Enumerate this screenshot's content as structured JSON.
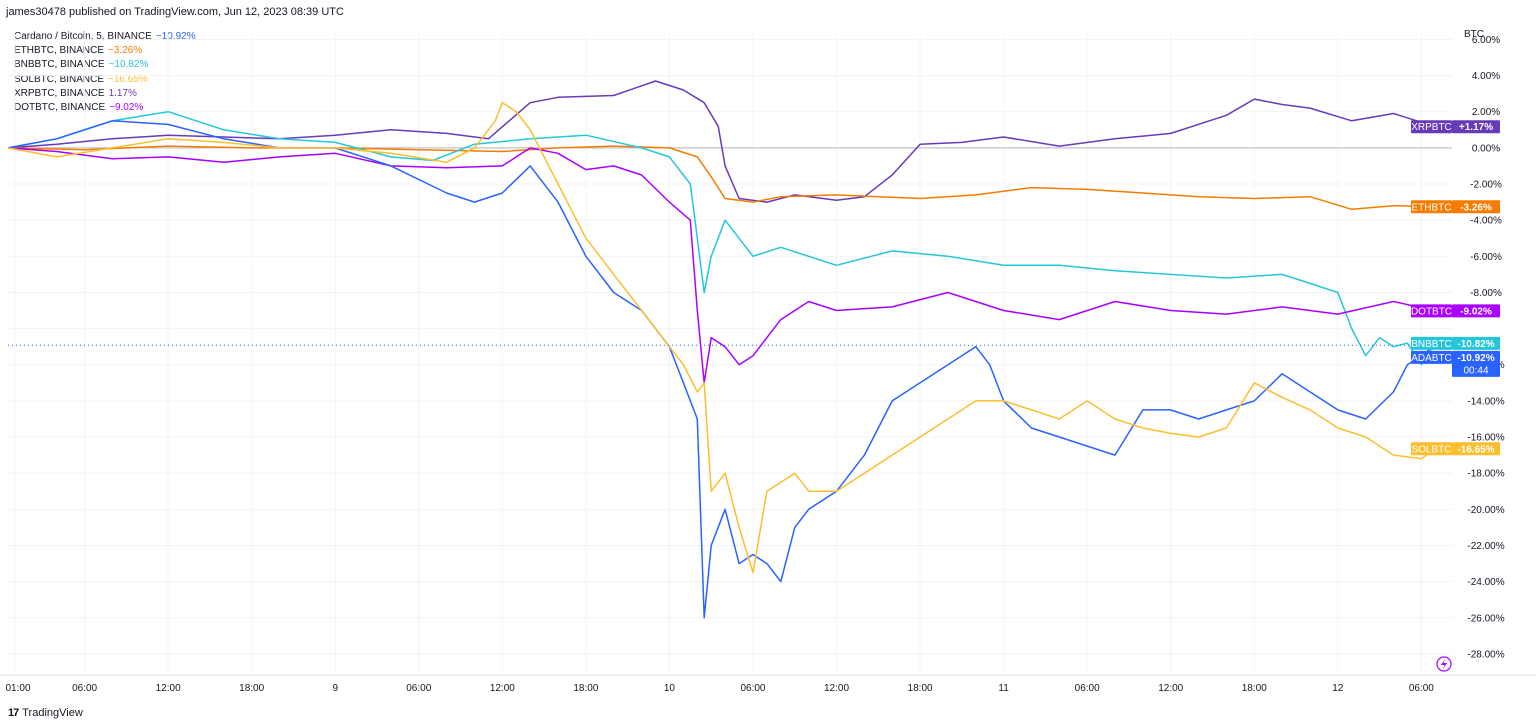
{
  "header": {
    "publish_text": "james30478 published on TradingView.com, Jun 12, 2023 08:39 UTC"
  },
  "footer": {
    "brand": "TradingView"
  },
  "colors": {
    "ADABTC": "#2962ff",
    "ETHBTC": "#f57c00",
    "BNBBTC": "#26c6da",
    "SOLBTC": "#fbbf2d",
    "XRPBTC": "#673ab7",
    "DOTBTC": "#aa00ff"
  },
  "chart_data": {
    "type": "line",
    "y_unit_label": "BTC",
    "y_tick_labels": [
      "6.00%",
      "4.00%",
      "2.00%",
      "0.00%",
      "-2.00%",
      "-4.00%",
      "-6.00%",
      "-8.00%",
      "-12.00%",
      "-14.00%",
      "-16.00%",
      "-18.00%",
      "-20.00%",
      "-22.00%",
      "-24.00%",
      "-26.00%",
      "-28.00%"
    ],
    "y_tick_values": [
      6,
      4,
      2,
      0,
      -2,
      -4,
      -6,
      -8,
      -12,
      -14,
      -16,
      -18,
      -20,
      -22,
      -24,
      -26,
      -28
    ],
    "ylim": [
      -29,
      6.3
    ],
    "x_tick_labels": [
      "01:00",
      "06:00",
      "12:00",
      "18:00",
      "9",
      "06:00",
      "12:00",
      "18:00",
      "10",
      "06:00",
      "12:00",
      "18:00",
      "11",
      "06:00",
      "12:00",
      "18:00",
      "12",
      "06:00"
    ],
    "x_tick_hours": [
      1,
      6,
      12,
      18,
      24,
      30,
      36,
      42,
      48,
      54,
      60,
      66,
      72,
      78,
      84,
      90,
      96,
      102
    ],
    "x_range_hours": [
      0.5,
      104.2
    ],
    "legend": [
      {
        "symbol": "ADABTC",
        "text": "Cardano / Bitcoin, 5, BINANCE",
        "value": "−10.92%"
      },
      {
        "symbol": "ETHBTC",
        "text": "ETHBTC, BINANCE",
        "value": "−3.26%"
      },
      {
        "symbol": "BNBBTC",
        "text": "BNBBTC, BINANCE",
        "value": "−10.82%"
      },
      {
        "symbol": "SOLBTC",
        "text": "SOLBTC, BINANCE",
        "value": "−16.65%"
      },
      {
        "symbol": "XRPBTC",
        "text": "XRPBTC, BINANCE",
        "value": "1.17%"
      },
      {
        "symbol": "DOTBTC",
        "text": "DOTBTC, BINANCE",
        "value": "−9.02%"
      }
    ],
    "price_tags": [
      {
        "symbol": "XRPBTC",
        "label": "XRPBTC",
        "value": "+1.17%",
        "y": 1.17
      },
      {
        "symbol": "ETHBTC",
        "label": "ETHBTC",
        "value": "-3.26%",
        "y": -3.26
      },
      {
        "symbol": "DOTBTC",
        "label": "DOTBTC",
        "value": "-9.02%",
        "y": -9.02
      },
      {
        "symbol": "BNBBTC",
        "label": "BNBBTC",
        "value": "-10.82%",
        "y": -10.82
      },
      {
        "symbol": "ADABTC",
        "label": "ADABTC",
        "value": "-10.92%",
        "y": -10.92,
        "countdown": "00:44"
      },
      {
        "symbol": "SOLBTC",
        "label": "SOLBTC",
        "value": "-16.65%",
        "y": -16.65
      }
    ],
    "series": [
      {
        "symbol": "XRPBTC",
        "x": [
          0.5,
          4,
          8,
          12,
          16,
          20,
          24,
          28,
          32,
          35,
          38,
          40,
          44,
          47,
          49,
          50.5,
          51.5,
          52,
          53,
          55,
          57,
          60,
          62,
          64,
          66,
          69,
          72,
          76,
          80,
          84,
          88,
          90,
          92,
          94,
          97,
          100,
          103
        ],
        "y": [
          0,
          0.2,
          0.5,
          0.7,
          0.6,
          0.5,
          0.7,
          1,
          0.8,
          0.5,
          2.5,
          2.8,
          2.9,
          3.7,
          3.2,
          2.5,
          1.2,
          -1,
          -2.8,
          -3,
          -2.6,
          -2.9,
          -2.7,
          -1.5,
          0.2,
          0.3,
          0.6,
          0.1,
          0.5,
          0.8,
          1.8,
          2.7,
          2.4,
          2.2,
          1.5,
          1.9,
          1.17
        ]
      },
      {
        "symbol": "ETHBTC",
        "x": [
          0.5,
          6,
          12,
          18,
          24,
          30,
          36,
          40,
          44,
          48,
          50,
          51,
          52,
          54,
          56,
          60,
          66,
          70,
          74,
          78,
          82,
          86,
          90,
          94,
          97,
          100,
          103
        ],
        "y": [
          0,
          -0.1,
          0.1,
          0,
          0,
          -0.1,
          -0.2,
          0,
          0.1,
          0,
          -0.5,
          -1.6,
          -2.8,
          -3,
          -2.7,
          -2.6,
          -2.8,
          -2.6,
          -2.2,
          -2.3,
          -2.5,
          -2.7,
          -2.8,
          -2.7,
          -3.4,
          -3.2,
          -3.26
        ]
      },
      {
        "symbol": "BNBBTC",
        "x": [
          0.5,
          4,
          8,
          12,
          16,
          20,
          24,
          28,
          31,
          34,
          38,
          42,
          46,
          48,
          49.5,
          50,
          50.5,
          51,
          52,
          54,
          56,
          60,
          64,
          68,
          72,
          76,
          80,
          84,
          88,
          92,
          94,
          96,
          97,
          98,
          99,
          100,
          101,
          102,
          103
        ],
        "y": [
          0,
          0.5,
          1.5,
          2,
          1,
          0.5,
          0.3,
          -0.5,
          -0.7,
          0.2,
          0.5,
          0.7,
          0,
          -0.5,
          -2,
          -5,
          -8,
          -6,
          -4,
          -6,
          -5.5,
          -6.5,
          -5.7,
          -6,
          -6.5,
          -6.5,
          -6.8,
          -7,
          -7.2,
          -7,
          -7.5,
          -8,
          -10,
          -11.5,
          -10.5,
          -11,
          -10.8,
          -12,
          -10.82
        ]
      },
      {
        "symbol": "DOTBTC",
        "x": [
          0.5,
          4,
          8,
          12,
          16,
          20,
          24,
          28,
          32,
          36,
          38,
          40,
          42,
          44,
          46,
          48,
          49.5,
          50,
          50.5,
          51,
          52,
          53,
          54,
          56,
          58,
          60,
          64,
          68,
          72,
          76,
          80,
          84,
          88,
          92,
          96,
          100,
          103
        ],
        "y": [
          0,
          -0.2,
          -0.6,
          -0.5,
          -0.8,
          -0.5,
          -0.3,
          -1,
          -1.1,
          -1,
          0,
          -0.3,
          -1.2,
          -1,
          -1.5,
          -3,
          -4,
          -9,
          -13,
          -10.5,
          -11,
          -12,
          -11.5,
          -9.5,
          -8.5,
          -9,
          -8.8,
          -8,
          -9,
          -9.5,
          -8.5,
          -9,
          -9.2,
          -8.8,
          -9.2,
          -8.5,
          -9.02
        ]
      },
      {
        "symbol": "ADABTC",
        "x": [
          0.5,
          4,
          8,
          12,
          16,
          20,
          24,
          28,
          32,
          34,
          36,
          38,
          40,
          42,
          44,
          46,
          48,
          49,
          50,
          50.5,
          51,
          52,
          53,
          54,
          55,
          56,
          57,
          58,
          60,
          62,
          64,
          66,
          68,
          70,
          71,
          72,
          74,
          76,
          78,
          80,
          82,
          84,
          86,
          88,
          90,
          92,
          94,
          96,
          98,
          100,
          101,
          102,
          103
        ],
        "y": [
          0,
          0.5,
          1.5,
          1.3,
          0.5,
          0,
          0,
          -1,
          -2.5,
          -3,
          -2.5,
          -1,
          -3,
          -6,
          -8,
          -9,
          -11,
          -13,
          -15,
          -26,
          -22,
          -20,
          -23,
          -22.5,
          -23,
          -24,
          -21,
          -20,
          -19,
          -17,
          -14,
          -13,
          -12,
          -11,
          -12,
          -14,
          -15.5,
          -16,
          -16.5,
          -17,
          -14.5,
          -14.5,
          -15,
          -14.5,
          -14,
          -12.5,
          -13.5,
          -14.5,
          -15,
          -13.5,
          -12,
          -11.5,
          -10.92
        ]
      },
      {
        "symbol": "SOLBTC",
        "x": [
          0.5,
          4,
          8,
          12,
          16,
          20,
          24,
          28,
          32,
          34,
          35.5,
          36,
          37,
          38,
          40,
          42,
          44,
          46,
          48,
          49,
          50,
          50.5,
          51,
          52,
          53,
          54,
          55,
          56,
          57,
          58,
          60,
          62,
          64,
          66,
          68,
          70,
          72,
          74,
          76,
          78,
          80,
          82,
          84,
          86,
          88,
          90,
          92,
          94,
          96,
          98,
          100,
          102,
          103
        ],
        "y": [
          0,
          -0.5,
          0,
          0.5,
          0.3,
          0,
          0,
          -0.3,
          -0.8,
          0,
          1.5,
          2.5,
          2,
          1,
          -2,
          -5,
          -7,
          -9,
          -11,
          -12,
          -13.5,
          -13,
          -19,
          -18,
          -21,
          -23.5,
          -19,
          -18.5,
          -18,
          -19,
          -19,
          -18,
          -17,
          -16,
          -15,
          -14,
          -14,
          -14.5,
          -15,
          -14,
          -15,
          -15.5,
          -15.8,
          -16,
          -15.5,
          -13,
          -13.8,
          -14.5,
          -15.5,
          -16,
          -17,
          -17.2,
          -16.65
        ]
      }
    ]
  }
}
